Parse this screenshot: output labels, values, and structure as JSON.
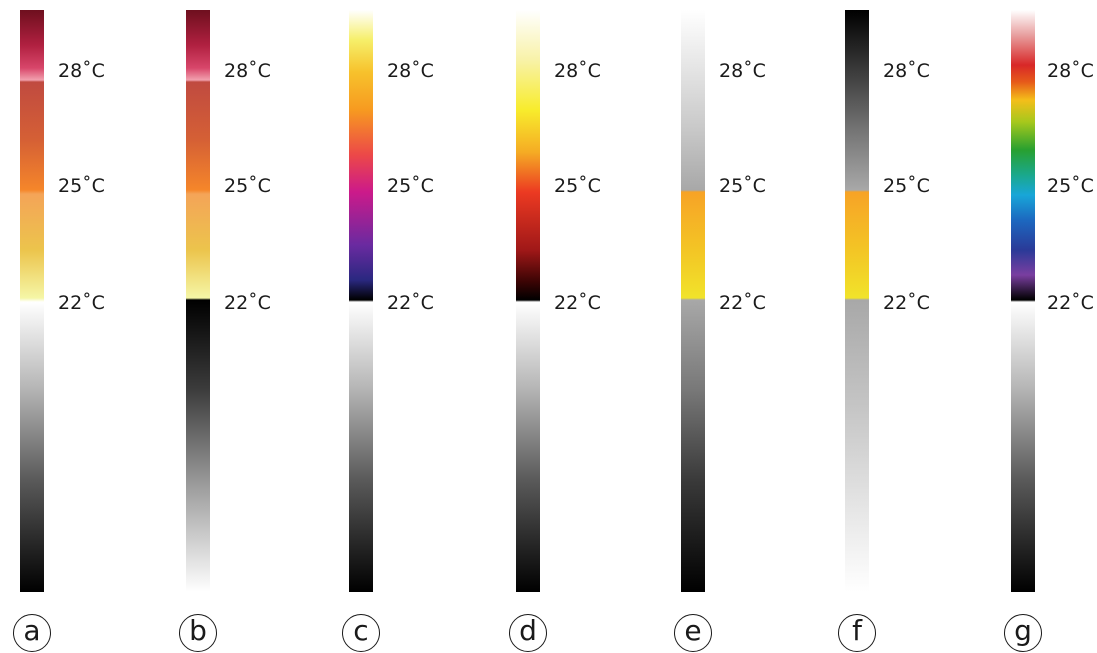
{
  "scales": [
    {
      "id": "a",
      "label_28": "28˚C",
      "label_25": "25˚C",
      "label_22": "22˚C",
      "letter": "a"
    },
    {
      "id": "b",
      "label_28": "28˚C",
      "label_25": "25˚C",
      "label_22": "22˚C",
      "letter": "b"
    },
    {
      "id": "c",
      "label_28": "28˚C",
      "label_25": "25˚C",
      "label_22": "22˚C",
      "letter": "c"
    },
    {
      "id": "d",
      "label_28": "28˚C",
      "label_25": "25˚C",
      "label_22": "22˚C",
      "letter": "d"
    },
    {
      "id": "e",
      "label_28": "28˚C",
      "label_25": "25˚C",
      "label_22": "22˚C",
      "letter": "e"
    },
    {
      "id": "f",
      "label_28": "28˚C",
      "label_25": "25˚C",
      "label_22": "22˚C",
      "letter": "f"
    },
    {
      "id": "g",
      "label_28": "28˚C",
      "label_25": "25˚C",
      "label_22": "22˚C",
      "letter": "g"
    }
  ]
}
